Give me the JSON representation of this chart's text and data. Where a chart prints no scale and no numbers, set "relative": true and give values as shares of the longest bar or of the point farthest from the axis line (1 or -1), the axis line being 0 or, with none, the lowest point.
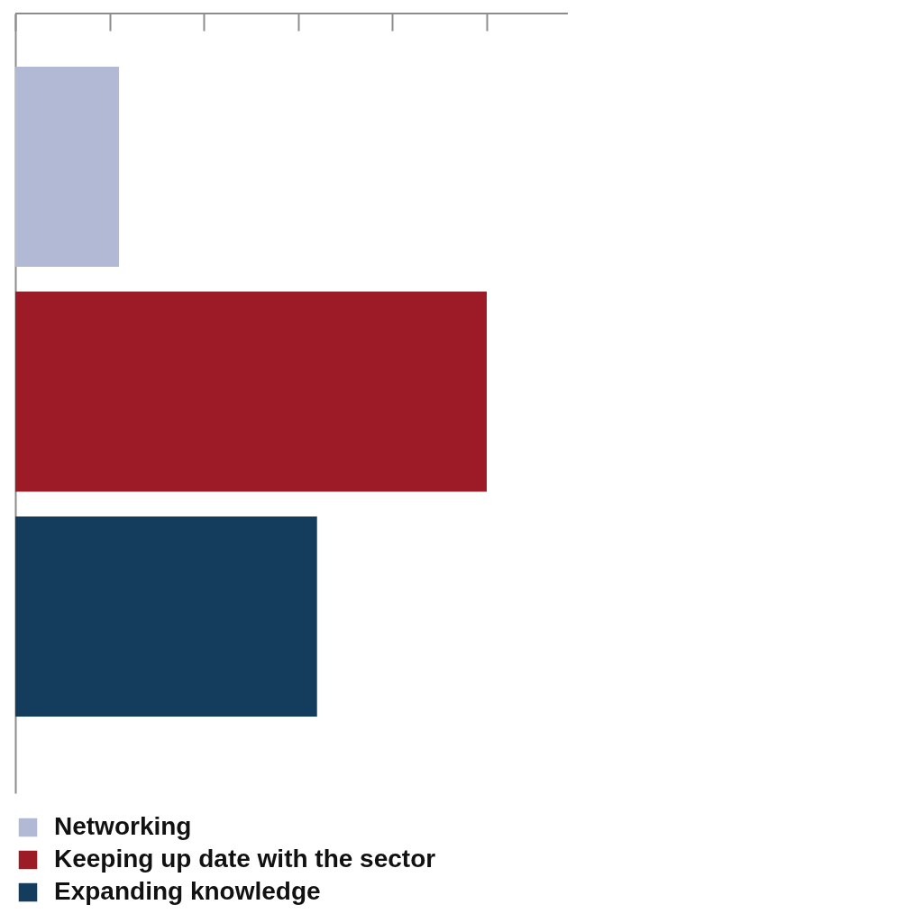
{
  "chart_data": {
    "type": "bar",
    "orientation": "horizontal",
    "relative": true,
    "categories": [
      null
    ],
    "series": [
      {
        "name": "Networking",
        "color": "#b1b9d4",
        "values": [
          0.22
        ]
      },
      {
        "name": "Keeping up date with the sector",
        "color": "#9c1b26",
        "values": [
          1
        ]
      },
      {
        "name": "Expanding knowledge",
        "color": "#143c5c",
        "values": [
          0.64
        ]
      }
    ],
    "legend": "bottom"
  }
}
